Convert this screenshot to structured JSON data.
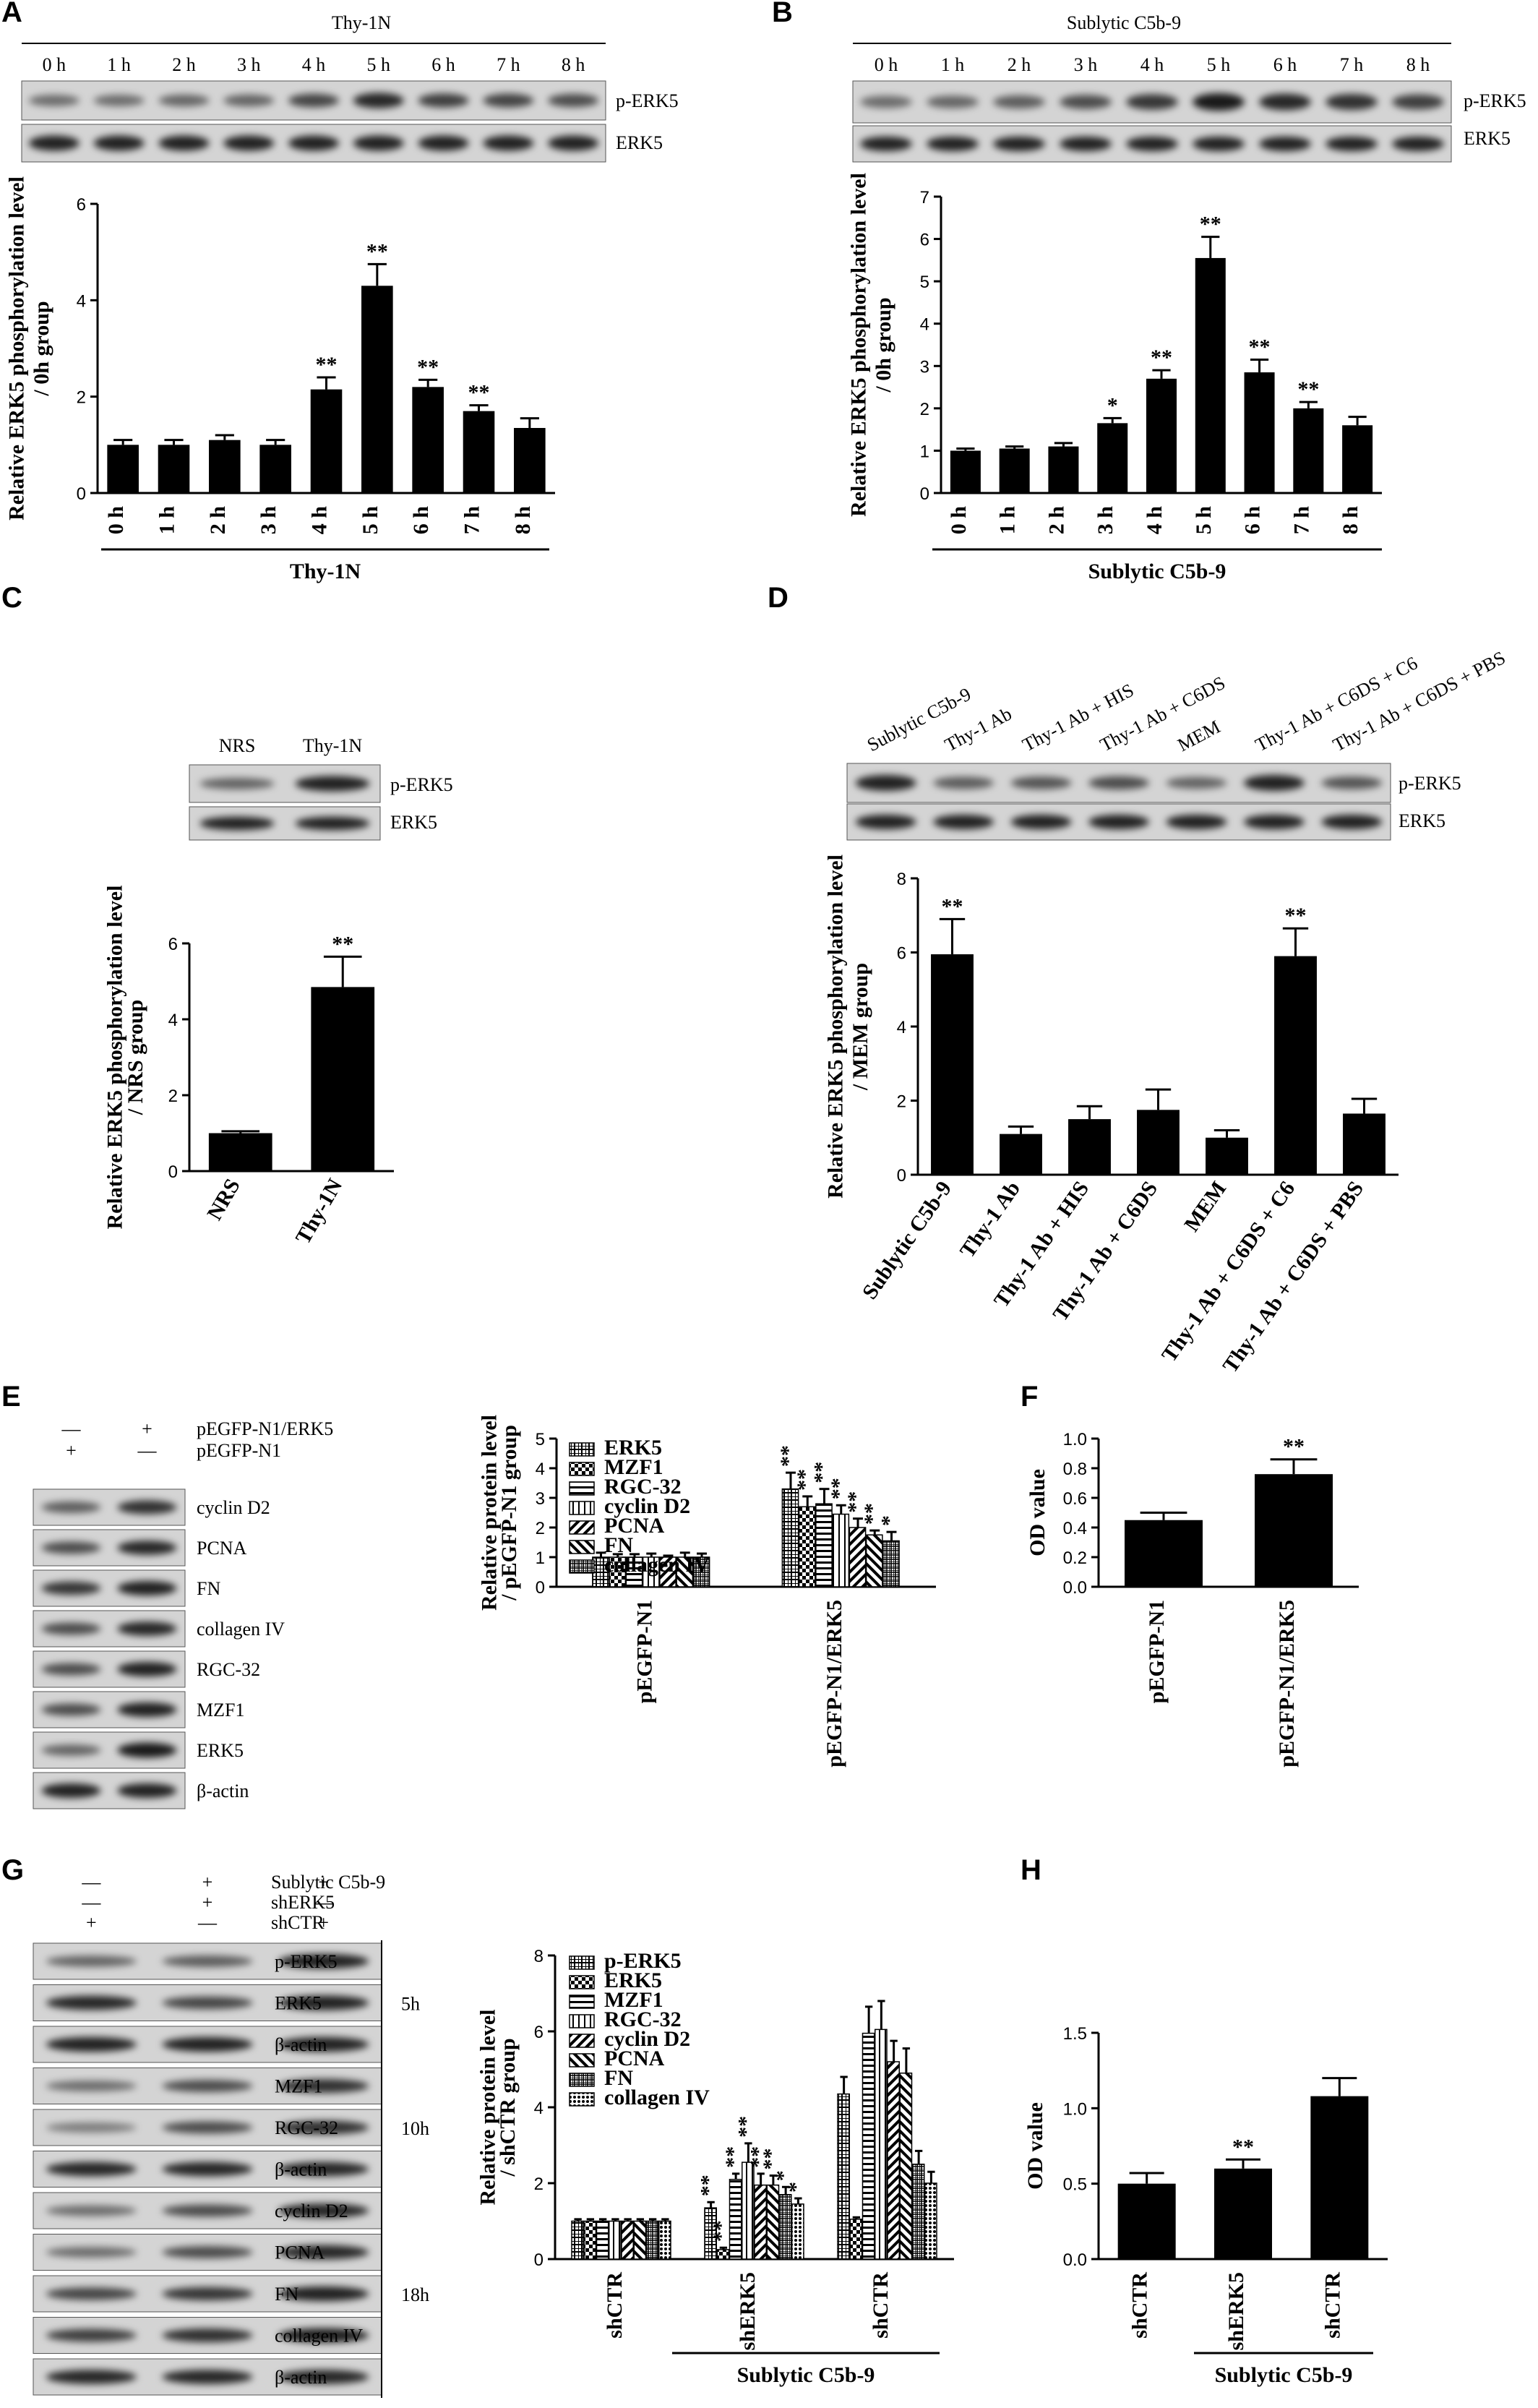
{
  "panels": {
    "A": {
      "label": "A",
      "header": "Thy-1N",
      "lanes": [
        "0 h",
        "1 h",
        "2 h",
        "3 h",
        "4 h",
        "5 h",
        "6 h",
        "7 h",
        "8 h"
      ],
      "blots": [
        "p-ERK5",
        "ERK5"
      ],
      "band_intensity": [
        [
          0.35,
          0.35,
          0.38,
          0.4,
          0.6,
          0.8,
          0.65,
          0.62,
          0.55
        ],
        [
          0.85,
          0.85,
          0.85,
          0.85,
          0.85,
          0.85,
          0.85,
          0.85,
          0.85
        ]
      ],
      "group_label": "Thy-1N"
    },
    "B": {
      "label": "B",
      "header": "Sublytic C5b-9",
      "lanes": [
        "0 h",
        "1 h",
        "2 h",
        "3 h",
        "4 h",
        "5 h",
        "6 h",
        "7 h",
        "8 h"
      ],
      "blots": [
        "p-ERK5",
        "ERK5"
      ],
      "band_intensity": [
        [
          0.35,
          0.38,
          0.45,
          0.55,
          0.7,
          0.9,
          0.8,
          0.75,
          0.65
        ],
        [
          0.85,
          0.85,
          0.85,
          0.85,
          0.85,
          0.85,
          0.85,
          0.85,
          0.85
        ]
      ],
      "group_label": "Sublytic C5b-9"
    },
    "C": {
      "label": "C",
      "lanes": [
        "NRS",
        "Thy-1N"
      ],
      "blots": [
        "p-ERK5",
        "ERK5"
      ],
      "band_intensity": [
        [
          0.4,
          0.85
        ],
        [
          0.85,
          0.85
        ]
      ]
    },
    "D": {
      "label": "D",
      "lanes": [
        "Sublytic C5b-9",
        "Thy-1 Ab",
        "Thy-1 Ab + HIS",
        "Thy-1 Ab + C6DS",
        "MEM",
        "Thy-1 Ab + C6DS + C6",
        "Thy-1 Ab + C6DS + PBS"
      ],
      "blots": [
        "p-ERK5",
        "ERK5"
      ],
      "band_intensity": [
        [
          0.85,
          0.45,
          0.5,
          0.55,
          0.4,
          0.85,
          0.5
        ],
        [
          0.85,
          0.85,
          0.85,
          0.85,
          0.85,
          0.85,
          0.85
        ]
      ]
    },
    "E": {
      "label": "E",
      "conditions": [
        {
          "name": "pEGFP-N1/ERK5",
          "marks": [
            "—",
            "+"
          ]
        },
        {
          "name": "pEGFP-N1",
          "marks": [
            "+",
            "—"
          ]
        }
      ],
      "blots": [
        "cyclin D2",
        "PCNA",
        "FN",
        "collagen IV",
        "RGC-32",
        "MZF1",
        "ERK5",
        "β-actin"
      ],
      "band_intensity": [
        [
          0.45,
          0.75
        ],
        [
          0.55,
          0.8
        ],
        [
          0.7,
          0.85
        ],
        [
          0.55,
          0.8
        ],
        [
          0.55,
          0.85
        ],
        [
          0.55,
          0.85
        ],
        [
          0.4,
          0.9
        ],
        [
          0.85,
          0.85
        ]
      ]
    },
    "F": {
      "label": "F"
    },
    "G": {
      "label": "G",
      "conditions": [
        {
          "name": "Sublytic C5b-9",
          "marks": [
            "—",
            "+",
            "+"
          ]
        },
        {
          "name": "shERK5",
          "marks": [
            "—",
            "+",
            "—"
          ]
        },
        {
          "name": "shCTR",
          "marks": [
            "+",
            "—",
            "+"
          ]
        }
      ],
      "blots": [
        "p-ERK5",
        "ERK5",
        "β-actin",
        "MZF1",
        "RGC-32",
        "β-actin",
        "cyclin D2",
        "PCNA",
        "FN",
        "collagen IV",
        "β-actin"
      ],
      "band_intensity": [
        [
          0.4,
          0.45,
          0.85
        ],
        [
          0.8,
          0.6,
          0.85
        ],
        [
          0.85,
          0.85,
          0.85
        ],
        [
          0.35,
          0.55,
          0.75
        ],
        [
          0.25,
          0.55,
          0.75
        ],
        [
          0.8,
          0.8,
          0.8
        ],
        [
          0.35,
          0.55,
          0.8
        ],
        [
          0.35,
          0.55,
          0.8
        ],
        [
          0.6,
          0.7,
          0.85
        ],
        [
          0.65,
          0.75,
          0.85
        ],
        [
          0.8,
          0.8,
          0.8
        ]
      ],
      "time_groups": [
        {
          "label": "5h",
          "rows": [
            0,
            2
          ]
        },
        {
          "label": "10h",
          "rows": [
            3,
            5
          ]
        },
        {
          "label": "18h",
          "rows": [
            6,
            10
          ]
        }
      ]
    },
    "H": {
      "label": "H"
    }
  },
  "chart_data": [
    {
      "id": "A",
      "type": "bar",
      "categories": [
        "0 h",
        "1 h",
        "2 h",
        "3 h",
        "4 h",
        "5 h",
        "6 h",
        "7 h",
        "8 h"
      ],
      "values": [
        1.0,
        1.0,
        1.1,
        1.0,
        2.15,
        4.3,
        2.2,
        1.7,
        1.35
      ],
      "errors": [
        0.1,
        0.1,
        0.1,
        0.1,
        0.25,
        0.45,
        0.15,
        0.12,
        0.2
      ],
      "significance": [
        "",
        "",
        "",
        "",
        "**",
        "**",
        "**",
        "**",
        ""
      ],
      "ylabel": "Relative ERK5 phosphorylation level / 0h group",
      "xlabel": "Thy-1N",
      "ylim": [
        0,
        6
      ],
      "yticks": [
        0,
        2,
        4,
        6
      ]
    },
    {
      "id": "B",
      "type": "bar",
      "categories": [
        "0 h",
        "1 h",
        "2 h",
        "3 h",
        "4 h",
        "5 h",
        "6 h",
        "7 h",
        "8 h"
      ],
      "values": [
        1.0,
        1.05,
        1.1,
        1.65,
        2.7,
        5.55,
        2.85,
        2.0,
        1.6
      ],
      "errors": [
        0.05,
        0.05,
        0.08,
        0.12,
        0.2,
        0.5,
        0.3,
        0.15,
        0.2
      ],
      "significance": [
        "",
        "",
        "",
        "*",
        "**",
        "**",
        "**",
        "**",
        ""
      ],
      "ylabel": "Relative ERK5 phosphorylation level / 0h group",
      "xlabel": "Sublytic C5b-9",
      "ylim": [
        0,
        7
      ],
      "yticks": [
        0,
        1,
        2,
        3,
        4,
        5,
        6,
        7
      ]
    },
    {
      "id": "C",
      "type": "bar",
      "categories": [
        "NRS",
        "Thy-1N"
      ],
      "values": [
        1.0,
        4.85
      ],
      "errors": [
        0.05,
        0.8
      ],
      "significance": [
        "",
        "**"
      ],
      "ylabel": "Relative ERK5 phosphorylation level / NRS group",
      "ylim": [
        0,
        6
      ],
      "yticks": [
        0,
        2,
        4,
        6
      ]
    },
    {
      "id": "D",
      "type": "bar",
      "categories": [
        "Sublytic C5b-9",
        "Thy-1 Ab",
        "Thy-1 Ab + HIS",
        "Thy-1 Ab + C6DS",
        "MEM",
        "Thy-1 Ab + C6DS + C6",
        "Thy-1 Ab + C6DS + PBS"
      ],
      "values": [
        5.95,
        1.1,
        1.5,
        1.75,
        1.0,
        5.9,
        1.65
      ],
      "errors": [
        0.95,
        0.2,
        0.35,
        0.55,
        0.2,
        0.75,
        0.4
      ],
      "significance": [
        "**",
        "",
        "",
        "",
        "",
        "**",
        ""
      ],
      "ylabel": "Relative ERK5 phosphorylation level / MEM group",
      "ylim": [
        0,
        8
      ],
      "yticks": [
        0,
        2,
        4,
        6,
        8
      ]
    },
    {
      "id": "E",
      "type": "bar",
      "categories": [
        "pEGFP-N1",
        "pEGFP-N1/ERK5"
      ],
      "series": [
        {
          "name": "ERK5",
          "values": [
            1.0,
            3.3
          ],
          "errors": [
            0.15,
            0.55
          ],
          "significance": [
            "",
            "**"
          ]
        },
        {
          "name": "MZF1",
          "values": [
            1.0,
            2.7
          ],
          "errors": [
            0.1,
            0.35
          ],
          "significance": [
            "",
            "**"
          ]
        },
        {
          "name": "RGC-32",
          "values": [
            1.0,
            2.8
          ],
          "errors": [
            0.1,
            0.5
          ],
          "significance": [
            "",
            "**"
          ]
        },
        {
          "name": "cyclin D2",
          "values": [
            1.0,
            2.45
          ],
          "errors": [
            0.12,
            0.3
          ],
          "significance": [
            "",
            "**"
          ]
        },
        {
          "name": "PCNA",
          "values": [
            1.0,
            2.0
          ],
          "errors": [
            0.05,
            0.3
          ],
          "significance": [
            "",
            "**"
          ]
        },
        {
          "name": "FN",
          "values": [
            1.0,
            1.75
          ],
          "errors": [
            0.15,
            0.15
          ],
          "significance": [
            "",
            "**"
          ]
        },
        {
          "name": "collagen IV",
          "values": [
            1.0,
            1.55
          ],
          "errors": [
            0.12,
            0.3
          ],
          "significance": [
            "",
            "*"
          ]
        }
      ],
      "ylabel": "Relative protein level / pEGFP-N1 group",
      "ylim": [
        0,
        5
      ],
      "yticks": [
        0,
        1,
        2,
        3,
        4,
        5
      ]
    },
    {
      "id": "F",
      "type": "bar",
      "categories": [
        "pEGFP-N1",
        "pEGFP-N1/ERK5"
      ],
      "values": [
        0.45,
        0.76
      ],
      "errors": [
        0.05,
        0.1
      ],
      "significance": [
        "",
        "**"
      ],
      "ylabel": "OD value",
      "ylim": [
        0,
        1.0
      ],
      "yticks": [
        "0.0",
        "0.2",
        "0.4",
        "0.6",
        "0.8",
        "1.0"
      ]
    },
    {
      "id": "G",
      "type": "bar",
      "categories": [
        "shCTR",
        "shERK5",
        "shCTR"
      ],
      "series": [
        {
          "name": "p-ERK5",
          "values": [
            1.0,
            1.35,
            4.35
          ],
          "errors": [
            0.05,
            0.15,
            0.45
          ],
          "significance": [
            "",
            "**",
            ""
          ]
        },
        {
          "name": "ERK5",
          "values": [
            1.0,
            0.25,
            1.05
          ],
          "errors": [
            0.05,
            0.05,
            0.05
          ],
          "significance": [
            "",
            "**",
            ""
          ]
        },
        {
          "name": "MZF1",
          "values": [
            1.0,
            2.1,
            5.95
          ],
          "errors": [
            0.05,
            0.15,
            0.7
          ],
          "significance": [
            "",
            "**",
            ""
          ]
        },
        {
          "name": "RGC-32",
          "values": [
            1.0,
            2.55,
            6.05
          ],
          "errors": [
            0.05,
            0.5,
            0.75
          ],
          "significance": [
            "",
            "**",
            ""
          ]
        },
        {
          "name": "cyclin D2",
          "values": [
            1.0,
            1.95,
            5.2
          ],
          "errors": [
            0.05,
            0.3,
            0.55
          ],
          "significance": [
            "",
            "**",
            ""
          ]
        },
        {
          "name": "PCNA",
          "values": [
            1.0,
            1.95,
            4.9
          ],
          "errors": [
            0.05,
            0.25,
            0.65
          ],
          "significance": [
            "",
            "**",
            ""
          ]
        },
        {
          "name": "FN",
          "values": [
            1.0,
            1.7,
            2.5
          ],
          "errors": [
            0.05,
            0.2,
            0.35
          ],
          "significance": [
            "",
            "*",
            ""
          ]
        },
        {
          "name": "collagen IV",
          "values": [
            1.0,
            1.45,
            2.0
          ],
          "errors": [
            0.05,
            0.15,
            0.3
          ],
          "significance": [
            "",
            "*",
            ""
          ]
        }
      ],
      "ylabel": "Relative protein level / shCTR group",
      "xlabel": "Sublytic C5b-9",
      "ylim": [
        0,
        8
      ],
      "yticks": [
        0,
        2,
        4,
        6,
        8
      ]
    },
    {
      "id": "H",
      "type": "bar",
      "categories": [
        "shCTR",
        "shERK5",
        "shCTR"
      ],
      "values": [
        0.5,
        0.6,
        1.08
      ],
      "errors": [
        0.07,
        0.06,
        0.12
      ],
      "significance": [
        "",
        "**",
        ""
      ],
      "ylabel": "OD value",
      "xlabel": "Sublytic C5b-9",
      "ylim": [
        0,
        1.5
      ],
      "yticks": [
        "0.0",
        "0.5",
        "1.0",
        "1.5"
      ]
    }
  ]
}
